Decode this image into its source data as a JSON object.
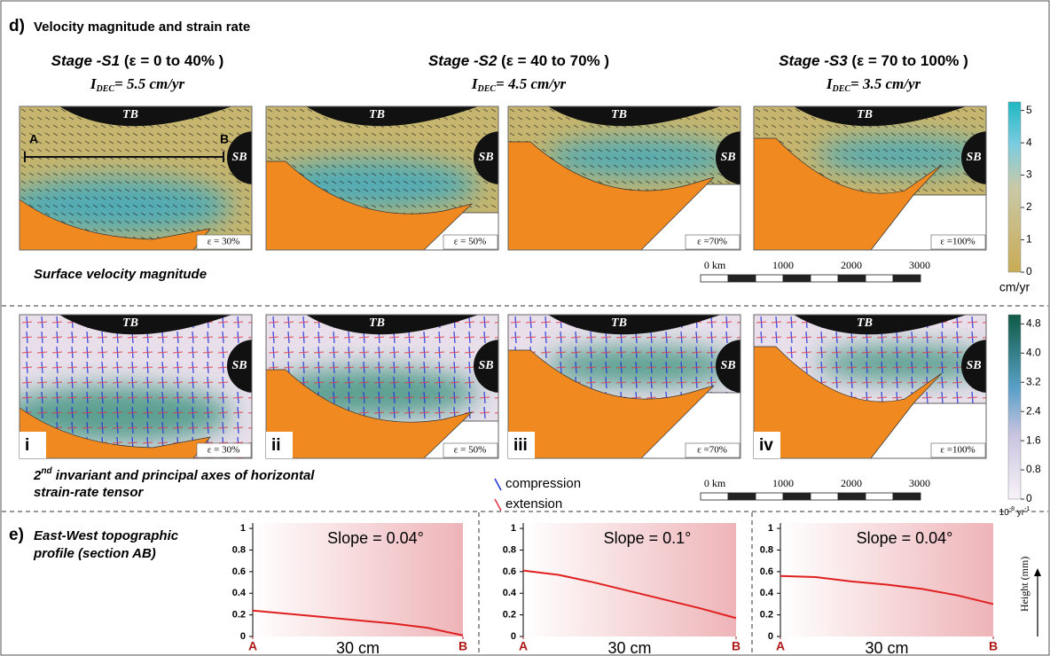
{
  "header": {
    "label": "d)",
    "title": "Velocity magnitude and strain rate"
  },
  "stages": [
    {
      "name": "Stage -S1",
      "range": " (ε = 0 to 40% )",
      "rate_symbol": "I",
      "rate_subscript": "DEC",
      "rate": "= 5.5 cm/yr"
    },
    {
      "name": "Stage -S2",
      "range": " (ε = 40 to 70% )",
      "rate_symbol": "I",
      "rate_subscript": "DEC",
      "rate": "= 4.5 cm/yr"
    },
    {
      "name": "Stage -S3",
      "range": " (ε = 70 to 100% )",
      "rate_symbol": "I",
      "rate_subscript": "DEC",
      "rate": "= 3.5 cm/yr"
    }
  ],
  "velocity_maps": {
    "caption": "Surface velocity magnitude",
    "section": {
      "start": "A",
      "end": "B"
    },
    "panels": [
      {
        "top_block": "TB",
        "side_block": "SB",
        "strain": "ε = 30%"
      },
      {
        "top_block": "TB",
        "side_block": "SB",
        "strain": "ε = 50%"
      },
      {
        "top_block": "TB",
        "side_block": "SB",
        "strain": "ε =70%"
      },
      {
        "top_block": "TB",
        "side_block": "SB",
        "strain": "ε =100%"
      }
    ],
    "colorbar": {
      "ticks": [
        "0",
        "1",
        "2",
        "3",
        "4",
        "5"
      ],
      "unit": "cm/yr"
    },
    "scale_bar": [
      "0 km",
      "1000",
      "2000",
      "3000"
    ]
  },
  "strain_maps": {
    "caption_lead": "2",
    "caption_sup": "nd",
    "caption_line1": " invariant and principal axes of horizontal",
    "caption_line2": "strain-rate tensor",
    "panels": [
      {
        "label": "i",
        "top_block": "TB",
        "side_block": "SB",
        "strain": "ε = 30%"
      },
      {
        "label": "ii",
        "top_block": "TB",
        "side_block": "SB",
        "strain": "ε = 50%"
      },
      {
        "label": "iii",
        "top_block": "TB",
        "side_block": "SB",
        "strain": "ε =70%"
      },
      {
        "label": "iv",
        "top_block": "TB",
        "side_block": "SB",
        "strain": "ε =100%"
      }
    ],
    "legend": [
      "compression",
      "extension"
    ],
    "colorbar": {
      "ticks": [
        "0",
        "0.8",
        "1.6",
        "2.4",
        "3.2",
        "4.0",
        "4.8"
      ],
      "unit_base": "10",
      "unit_exp": "-8",
      "unit_mid": " yr",
      "unit_exp2": "-1"
    },
    "scale_bar": [
      "0 km",
      "1000",
      "2000",
      "3000"
    ]
  },
  "profiles": {
    "label": "e)",
    "title_line1": "East-West topographic",
    "title_line2": "profile (section AB)",
    "axis_label": "Height (mm)"
  },
  "chart_data": [
    {
      "type": "line",
      "annotation": "Slope = 0.04°",
      "x_label": "30 cm",
      "x": [
        0,
        5,
        10,
        15,
        20,
        25,
        30
      ],
      "series": [
        {
          "color": "#e02020",
          "values": [
            0.24,
            0.21,
            0.18,
            0.15,
            0.12,
            0.08,
            0.01
          ]
        }
      ],
      "xlim": [
        0,
        30
      ],
      "xticks": [
        {
          "value": 0,
          "label": "A"
        },
        {
          "value": 30,
          "label": "B"
        }
      ],
      "ylim": [
        0,
        1.05
      ],
      "yticks": [
        0,
        0.2,
        0.4,
        0.6,
        0.8,
        1
      ]
    },
    {
      "type": "line",
      "annotation": "Slope = 0.1°",
      "x_label": "30 cm",
      "x": [
        0,
        5,
        10,
        15,
        20,
        25,
        30
      ],
      "series": [
        {
          "color": "#e02020",
          "values": [
            0.61,
            0.57,
            0.5,
            0.42,
            0.34,
            0.26,
            0.17
          ]
        }
      ],
      "xlim": [
        0,
        30
      ],
      "xticks": [
        {
          "value": 0,
          "label": "A"
        },
        {
          "value": 30,
          "label": "B"
        }
      ],
      "ylim": [
        0,
        1.05
      ],
      "yticks": [
        0,
        0.2,
        0.4,
        0.6,
        0.8,
        1
      ]
    },
    {
      "type": "line",
      "annotation": "Slope = 0.04°",
      "x_label": "30 cm",
      "x": [
        0,
        5,
        10,
        15,
        20,
        25,
        30
      ],
      "series": [
        {
          "color": "#e02020",
          "values": [
            0.56,
            0.55,
            0.51,
            0.48,
            0.44,
            0.38,
            0.3
          ]
        }
      ],
      "xlim": [
        0,
        30
      ],
      "xticks": [
        {
          "value": 0,
          "label": "A"
        },
        {
          "value": 30,
          "label": "B"
        }
      ],
      "ylim": [
        0,
        1.05
      ],
      "yticks": [
        0,
        0.2,
        0.4,
        0.6,
        0.8,
        1
      ]
    }
  ]
}
